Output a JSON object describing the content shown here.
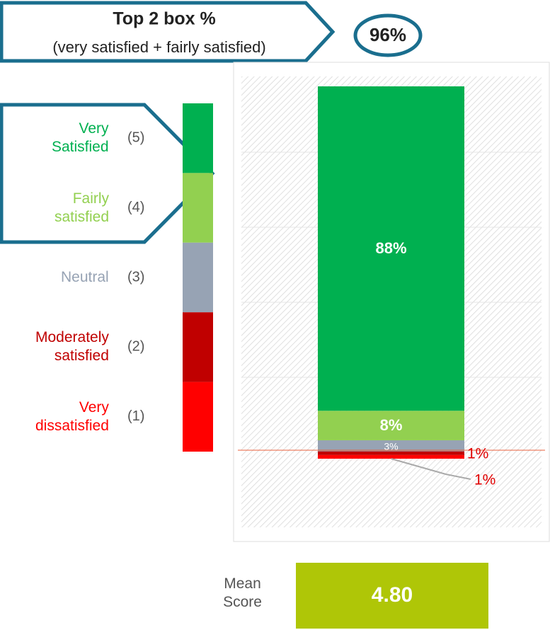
{
  "header": {
    "title": "Top 2 box %",
    "subtitle": "(very satisfied + fairly satisfied)",
    "top2_value": "96%"
  },
  "chart_data": {
    "type": "stacked_bar",
    "series": [
      {
        "name": "Very Satisfied",
        "code": "(5)",
        "color": "#00b050",
        "values": [
          88
        ],
        "value_labels": [
          "88%"
        ]
      },
      {
        "name": "Fairly satisfied",
        "code": "(4)",
        "color": "#92d050",
        "values": [
          8
        ],
        "value_labels": [
          "8%"
        ]
      },
      {
        "name": "Neutral",
        "code": "(3)",
        "color": "#97a3b4",
        "values": [
          3
        ],
        "value_labels": [
          "3%"
        ]
      },
      {
        "name": "Moderately satisfied",
        "code": "(2)",
        "color": "#c00000",
        "values": [
          1
        ],
        "value_labels": [
          "1%"
        ]
      },
      {
        "name": "Very dissatisfied",
        "code": "(1)",
        "color": "#ff0000",
        "values": [
          1
        ],
        "value_labels": [
          "1%"
        ]
      }
    ]
  },
  "mean": {
    "label": "Mean Score",
    "value": "4.80"
  }
}
